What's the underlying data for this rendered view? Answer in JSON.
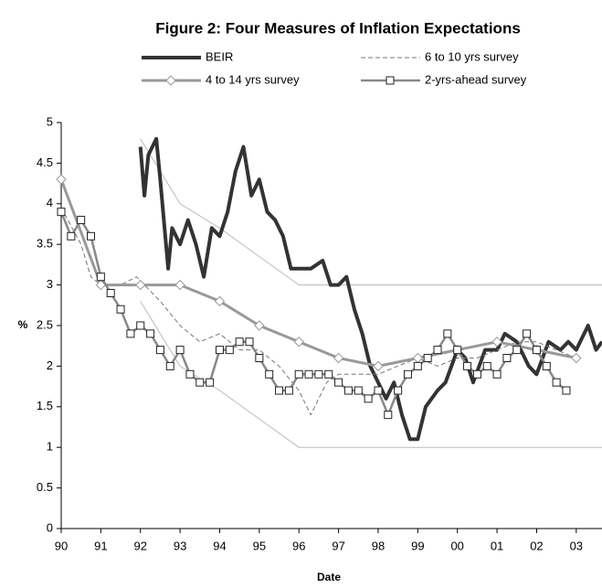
{
  "chart_data": {
    "type": "line",
    "title": "Figure 2: Four Measures of Inflation Expectations",
    "xlabel": "Date",
    "ylabel": "%",
    "xlim": [
      1990,
      2003.65
    ],
    "ylim": [
      0,
      5
    ],
    "xticks": [
      {
        "value": 1990,
        "label": "90"
      },
      {
        "value": 1991,
        "label": "91"
      },
      {
        "value": 1992,
        "label": "92"
      },
      {
        "value": 1993,
        "label": "93"
      },
      {
        "value": 1994,
        "label": "94"
      },
      {
        "value": 1995,
        "label": "95"
      },
      {
        "value": 1996,
        "label": "96"
      },
      {
        "value": 1997,
        "label": "97"
      },
      {
        "value": 1998,
        "label": "98"
      },
      {
        "value": 1999,
        "label": "99"
      },
      {
        "value": 2000,
        "label": "00"
      },
      {
        "value": 2001,
        "label": "01"
      },
      {
        "value": 2002,
        "label": "02"
      },
      {
        "value": 2003,
        "label": "03"
      }
    ],
    "yticks": [
      0,
      0.5,
      1,
      1.5,
      2,
      2.5,
      3,
      3.5,
      4,
      4.5,
      5
    ],
    "series": [
      {
        "color": "#bbbbbb",
        "width": 1,
        "x": [
          1992,
          1993,
          1994,
          1995,
          1996,
          2003.65
        ],
        "values": [
          4.8,
          4.0,
          3.7,
          3.35,
          3.0,
          3.0
        ]
      },
      {
        "color": "#bbbbbb",
        "width": 1,
        "x": [
          1992,
          1993,
          1994,
          1995,
          1996,
          2003.65
        ],
        "values": [
          2.8,
          2.0,
          1.7,
          1.35,
          1.0,
          1.0
        ]
      },
      {
        "name": "BEIR",
        "color": "#333333",
        "width": 4,
        "x": [
          1992.0,
          1992.1,
          1992.2,
          1992.4,
          1992.5,
          1992.7,
          1992.8,
          1993.0,
          1993.2,
          1993.4,
          1993.6,
          1993.8,
          1994.0,
          1994.2,
          1994.4,
          1994.6,
          1994.8,
          1995.0,
          1995.2,
          1995.4,
          1995.6,
          1995.8,
          1996.0,
          1996.3,
          1996.6,
          1996.8,
          1997.0,
          1997.2,
          1997.4,
          1997.6,
          1997.8,
          1998.0,
          1998.2,
          1998.4,
          1998.6,
          1998.8,
          1999.0,
          1999.2,
          1999.5,
          1999.7,
          2000.0,
          2000.2,
          2000.4,
          2000.7,
          2001.0,
          2001.2,
          2001.5,
          2001.8,
          2002.0,
          2002.3,
          2002.6,
          2002.8,
          2003.0,
          2003.3,
          2003.5,
          2003.65
        ],
        "values": [
          4.7,
          4.1,
          4.6,
          4.8,
          4.3,
          3.2,
          3.7,
          3.5,
          3.8,
          3.5,
          3.1,
          3.7,
          3.6,
          3.9,
          4.4,
          4.7,
          4.1,
          4.3,
          3.9,
          3.8,
          3.6,
          3.2,
          3.2,
          3.2,
          3.3,
          3.0,
          3.0,
          3.1,
          2.7,
          2.4,
          2.0,
          1.8,
          1.6,
          1.8,
          1.4,
          1.1,
          1.1,
          1.5,
          1.7,
          1.8,
          2.2,
          2.1,
          1.8,
          2.2,
          2.2,
          2.4,
          2.3,
          2.0,
          1.9,
          2.3,
          2.2,
          2.3,
          2.2,
          2.5,
          2.2,
          2.3
        ]
      },
      {
        "name": "6 to 10 yrs survey",
        "color": "#777777",
        "width": 1,
        "dash": true,
        "x": [
          1990,
          1990.5,
          1990.75,
          1991,
          1991.5,
          1991.9,
          1992.5,
          1993,
          1993.5,
          1994,
          1994.5,
          1995,
          1995.5,
          1996,
          1996.3,
          1996.7,
          1997,
          1997.5,
          1998,
          1998.5,
          1999,
          1999.5,
          2000,
          2000.5,
          2001,
          2001.5,
          2002,
          2002.5,
          2003
        ],
        "values": [
          3.95,
          3.5,
          3.1,
          3.0,
          3.0,
          3.1,
          2.8,
          2.5,
          2.3,
          2.4,
          2.2,
          2.2,
          2.0,
          1.7,
          1.4,
          1.8,
          1.9,
          1.9,
          1.9,
          2.0,
          2.1,
          2.0,
          2.1,
          2.1,
          2.2,
          2.3,
          2.3,
          2.2,
          2.1
        ]
      },
      {
        "name": "4 to 14 yrs survey",
        "color": "#999999",
        "width": 3,
        "marker": "diamond",
        "x": [
          1990,
          1991,
          1992,
          1993,
          1994,
          1995,
          1996,
          1997,
          1998,
          1999,
          2000,
          2001,
          2002,
          2003
        ],
        "values": [
          4.3,
          3.0,
          3.0,
          3.0,
          2.8,
          2.5,
          2.3,
          2.1,
          2.0,
          2.1,
          2.2,
          2.3,
          2.2,
          2.1
        ]
      },
      {
        "name": "2-yrs-ahead survey",
        "color": "#888888",
        "width": 2.5,
        "marker": "square",
        "x": [
          1990,
          1990.25,
          1990.5,
          1990.75,
          1991,
          1991.25,
          1991.5,
          1991.75,
          1992,
          1992.25,
          1992.5,
          1992.75,
          1993,
          1993.25,
          1993.5,
          1993.75,
          1994,
          1994.25,
          1994.5,
          1994.75,
          1995,
          1995.25,
          1995.5,
          1995.75,
          1996,
          1996.25,
          1996.5,
          1996.75,
          1997,
          1997.25,
          1997.5,
          1997.75,
          1998,
          1998.25,
          1998.5,
          1998.75,
          1999,
          1999.25,
          1999.5,
          1999.75,
          2000,
          2000.25,
          2000.5,
          2000.75,
          2001,
          2001.25,
          2001.5,
          2001.75,
          2002,
          2002.25,
          2002.5,
          2002.75
        ],
        "values": [
          3.9,
          3.6,
          3.8,
          3.6,
          3.1,
          2.9,
          2.7,
          2.4,
          2.5,
          2.4,
          2.2,
          2.0,
          2.2,
          1.9,
          1.8,
          1.8,
          2.2,
          2.2,
          2.3,
          2.3,
          2.1,
          1.9,
          1.7,
          1.7,
          1.9,
          1.9,
          1.9,
          1.9,
          1.8,
          1.7,
          1.7,
          1.6,
          1.7,
          1.4,
          1.7,
          1.9,
          2.0,
          2.1,
          2.2,
          2.4,
          2.2,
          2.0,
          1.9,
          2.0,
          1.9,
          2.1,
          2.2,
          2.4,
          2.2,
          2.0,
          1.8,
          1.7
        ]
      }
    ]
  }
}
